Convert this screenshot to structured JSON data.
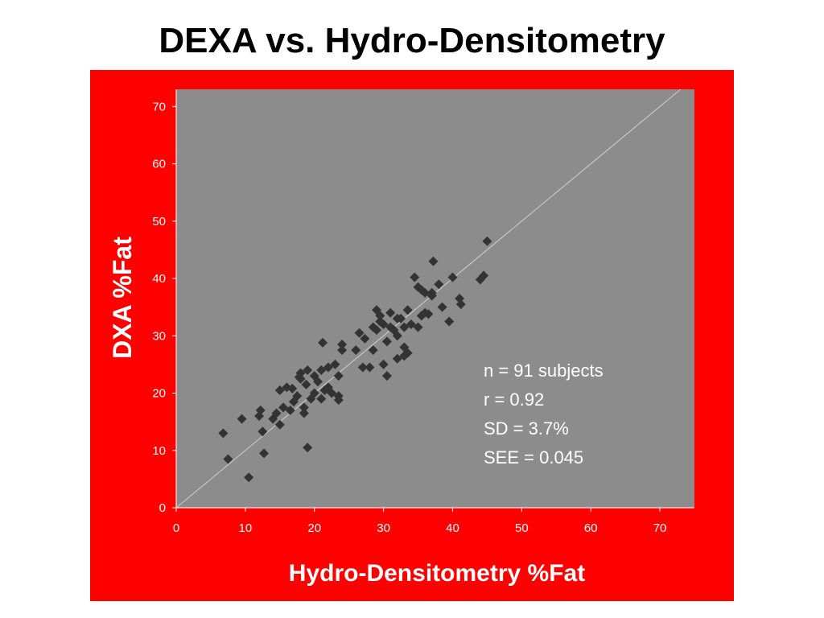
{
  "title": "DEXA vs. Hydro-Densitometry",
  "colors": {
    "panel": "#ff0000",
    "plot_area": "#8c8c8c",
    "marker": "#333333",
    "identity_line": "#cfcfcf",
    "text_on_panel": "#ffffff"
  },
  "stats": [
    "n = 91 subjects",
    "r = 0.92",
    "SD = 3.7%",
    "SEE = 0.045"
  ],
  "chart_data": {
    "type": "scatter",
    "title": "DEXA vs. Hydro-Densitometry",
    "xlabel": "Hydro-Densitometry %Fat",
    "ylabel": "DXA %Fat",
    "xlim": [
      0,
      75
    ],
    "ylim": [
      0,
      73
    ],
    "xticks": [
      0,
      10,
      20,
      30,
      40,
      50,
      60,
      70
    ],
    "yticks": [
      0,
      10,
      20,
      30,
      40,
      50,
      60,
      70
    ],
    "grid": false,
    "marker": "diamond",
    "reference_line": "identity (y = x)",
    "series": [
      {
        "points": [
          [
            6.8,
            13.0
          ],
          [
            7.5,
            8.5
          ],
          [
            9.5,
            15.5
          ],
          [
            10.5,
            5.3
          ],
          [
            12.0,
            16.0
          ],
          [
            12.2,
            17.0
          ],
          [
            12.5,
            13.3
          ],
          [
            12.7,
            9.5
          ],
          [
            14.0,
            15.5
          ],
          [
            14.5,
            16.5
          ],
          [
            15.0,
            14.5
          ],
          [
            15.0,
            20.5
          ],
          [
            15.5,
            17.5
          ],
          [
            16.0,
            21.0
          ],
          [
            16.5,
            17.0
          ],
          [
            17.0,
            18.5
          ],
          [
            17.5,
            19.5
          ],
          [
            18.0,
            22.5
          ],
          [
            18.0,
            23.5
          ],
          [
            18.5,
            17.5
          ],
          [
            18.5,
            16.5
          ],
          [
            18.8,
            21.5
          ],
          [
            19.0,
            10.5
          ],
          [
            19.0,
            24.0
          ],
          [
            19.5,
            19.0
          ],
          [
            20.0,
            20.0
          ],
          [
            20.0,
            23.0
          ],
          [
            20.5,
            22.0
          ],
          [
            21.0,
            19.0
          ],
          [
            21.0,
            24.0
          ],
          [
            21.2,
            28.8
          ],
          [
            21.5,
            20.5
          ],
          [
            22.0,
            21.0
          ],
          [
            22.0,
            24.5
          ],
          [
            22.5,
            20.0
          ],
          [
            23.0,
            25.0
          ],
          [
            23.5,
            18.8
          ],
          [
            23.5,
            19.5
          ],
          [
            23.5,
            23.0
          ],
          [
            24.0,
            28.5
          ],
          [
            24.0,
            27.5
          ],
          [
            26.0,
            27.5
          ],
          [
            27.0,
            24.5
          ],
          [
            28.0,
            24.5
          ],
          [
            28.5,
            27.5
          ],
          [
            28.5,
            31.5
          ],
          [
            29.0,
            34.5
          ],
          [
            29.0,
            31.0
          ],
          [
            29.5,
            33.5
          ],
          [
            29.5,
            32.5
          ],
          [
            30.0,
            32.0
          ],
          [
            30.0,
            25.0
          ],
          [
            30.5,
            23.0
          ],
          [
            30.5,
            29.0
          ],
          [
            31.0,
            31.5
          ],
          [
            31.0,
            34.0
          ],
          [
            31.5,
            31.0
          ],
          [
            32.0,
            33.0
          ],
          [
            32.0,
            30.0
          ],
          [
            32.0,
            26.0
          ],
          [
            32.5,
            33.0
          ],
          [
            33.0,
            26.5
          ],
          [
            33.0,
            31.5
          ],
          [
            33.0,
            28.0
          ],
          [
            33.5,
            27.0
          ],
          [
            34.0,
            32.0
          ],
          [
            34.5,
            40.2
          ],
          [
            35.0,
            38.5
          ],
          [
            35.0,
            31.5
          ],
          [
            35.5,
            33.5
          ],
          [
            35.5,
            38.0
          ],
          [
            36.0,
            37.5
          ],
          [
            36.0,
            34.0
          ],
          [
            36.5,
            33.8
          ],
          [
            37.0,
            37.5
          ],
          [
            37.0,
            37.0
          ],
          [
            37.2,
            43.0
          ],
          [
            38.0,
            39.0
          ],
          [
            38.5,
            35.0
          ],
          [
            39.5,
            32.5
          ],
          [
            40.0,
            40.2
          ],
          [
            41.0,
            36.5
          ],
          [
            41.2,
            35.5
          ],
          [
            44.0,
            39.8
          ],
          [
            44.5,
            40.5
          ],
          [
            45.0,
            46.5
          ],
          [
            17.8,
            22.8
          ],
          [
            26.5,
            30.5
          ],
          [
            27.3,
            29.5
          ],
          [
            33.5,
            34.5
          ],
          [
            16.8,
            20.8
          ]
        ]
      }
    ]
  }
}
